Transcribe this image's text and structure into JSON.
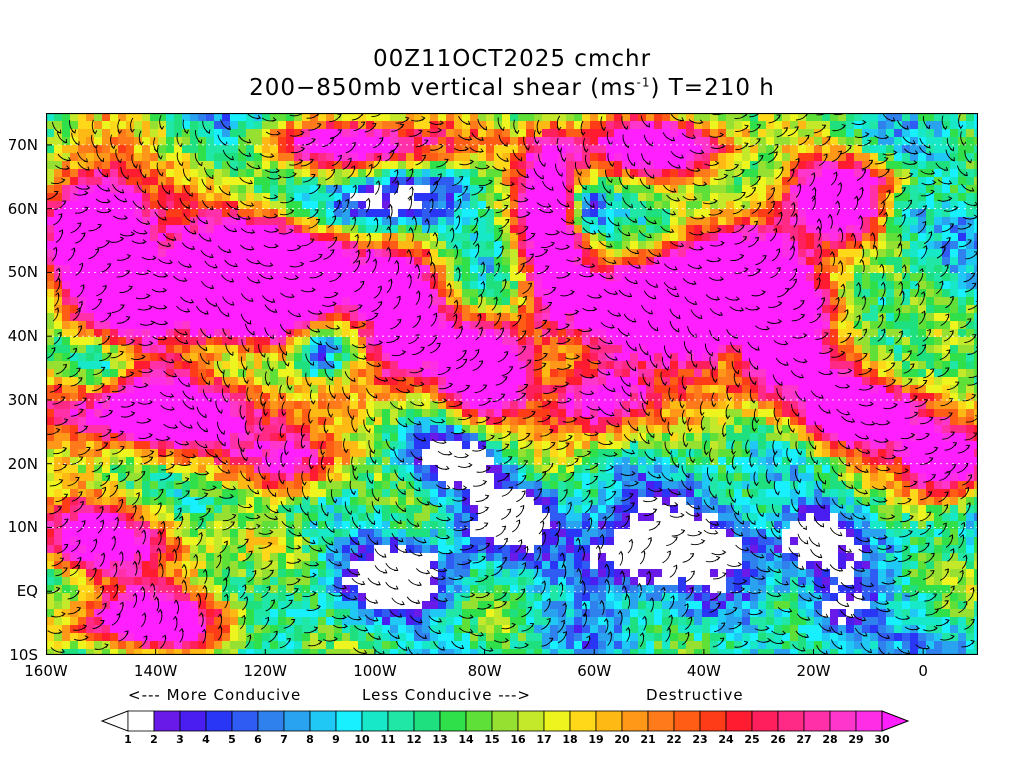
{
  "title": {
    "line1": "00Z11OCT2025 cmchr",
    "line2_before": "200−850mb vertical shear (ms",
    "line2_sup": "-1",
    "line2_after": ") T=210 h"
  },
  "map": {
    "lat_labels": [
      "70N",
      "60N",
      "50N",
      "40N",
      "30N",
      "20N",
      "10N",
      "EQ",
      "10S"
    ],
    "lon_labels": [
      "160W",
      "140W",
      "120W",
      "100W",
      "80W",
      "60W",
      "40W",
      "20W",
      "0"
    ],
    "lat_values": [
      70,
      60,
      50,
      40,
      30,
      20,
      10,
      0,
      -10
    ],
    "lon_values": [
      -160,
      -140,
      -120,
      -100,
      -80,
      -60,
      -40,
      -20,
      0
    ],
    "lat_range": [
      -10,
      75
    ],
    "lon_range": [
      -160,
      10
    ],
    "field": "vertical wind shear magnitude with streamlines"
  },
  "legend": {
    "more_conducive": "<--- More Conducive",
    "less_conducive": "Less Conducive --->",
    "destructive": "Destructive",
    "labels": [
      "1",
      "2",
      "3",
      "4",
      "5",
      "6",
      "7",
      "8",
      "9",
      "10",
      "11",
      "12",
      "13",
      "14",
      "15",
      "16",
      "17",
      "18",
      "19",
      "20",
      "21",
      "22",
      "23",
      "24",
      "25",
      "26",
      "27",
      "28",
      "29",
      "30"
    ],
    "colors": [
      "#ffffff",
      "#6a1ae8",
      "#4a1ef0",
      "#2a36f5",
      "#2f5cf2",
      "#2f82ee",
      "#29a3f0",
      "#20c8f5",
      "#18efff",
      "#17e8c8",
      "#20e6a6",
      "#1ee07e",
      "#30e04a",
      "#5ee038",
      "#96e032",
      "#c4e82a",
      "#eef41e",
      "#ffd81a",
      "#ffb914",
      "#ff9818",
      "#ff7a1a",
      "#ff5c16",
      "#ff3c18",
      "#ff1c30",
      "#ff1f5c",
      "#ff2a86",
      "#ff30a8",
      "#ff36cc",
      "#ff2ee6",
      "#ff1fff"
    ]
  }
}
